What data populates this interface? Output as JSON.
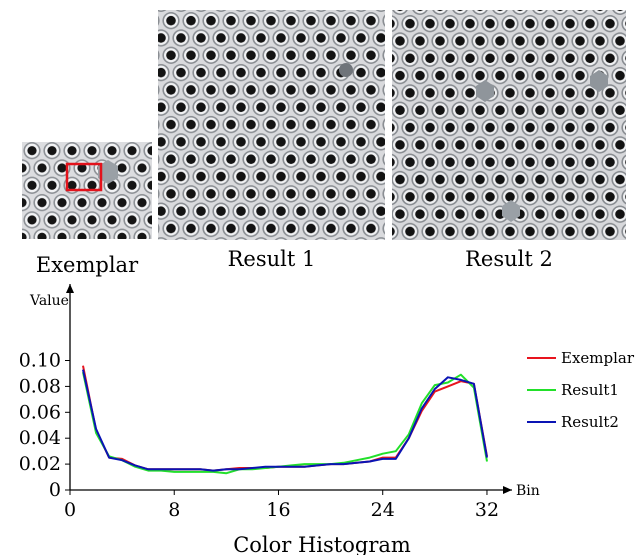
{
  "figure": {
    "captions": [
      "Exemplar",
      "Result 1",
      "Result 2"
    ]
  },
  "chart_data": {
    "type": "line",
    "xlabel": "Color Histogram",
    "x_axis_name": "Bin",
    "ylabel": "Value",
    "xlim": [
      0,
      33
    ],
    "ylim": [
      0,
      0.11
    ],
    "xticks": [
      0,
      8,
      16,
      24,
      32
    ],
    "yticks": [
      0,
      0.02,
      0.04,
      0.06,
      0.08,
      0.1
    ],
    "xtick_labels": [
      "0",
      "8",
      "16",
      "24",
      "32"
    ],
    "ytick_labels": [
      "0",
      "0.02",
      "0.04",
      "0.06",
      "0.08",
      "0.10"
    ],
    "legend_position": "right",
    "grid": false,
    "x": [
      1,
      2,
      3,
      4,
      5,
      6,
      7,
      8,
      9,
      10,
      11,
      12,
      13,
      14,
      15,
      16,
      17,
      18,
      19,
      20,
      21,
      22,
      23,
      24,
      25,
      26,
      27,
      28,
      29,
      30,
      31,
      32
    ],
    "series": [
      {
        "name": "Exemplar",
        "color": "#e8141e",
        "values": [
          0.096,
          0.046,
          0.025,
          0.024,
          0.019,
          0.016,
          0.016,
          0.016,
          0.016,
          0.016,
          0.015,
          0.016,
          0.017,
          0.017,
          0.017,
          0.018,
          0.018,
          0.018,
          0.019,
          0.02,
          0.02,
          0.021,
          0.022,
          0.025,
          0.025,
          0.04,
          0.061,
          0.076,
          0.08,
          0.084,
          0.082,
          0.026
        ]
      },
      {
        "name": "Result1",
        "color": "#22e02a",
        "values": [
          0.091,
          0.044,
          0.026,
          0.023,
          0.018,
          0.015,
          0.015,
          0.014,
          0.014,
          0.014,
          0.014,
          0.013,
          0.016,
          0.016,
          0.017,
          0.018,
          0.019,
          0.02,
          0.02,
          0.02,
          0.021,
          0.023,
          0.025,
          0.028,
          0.03,
          0.043,
          0.067,
          0.081,
          0.083,
          0.089,
          0.079,
          0.022
        ]
      },
      {
        "name": "Result2",
        "color": "#0a14b4",
        "values": [
          0.093,
          0.047,
          0.025,
          0.023,
          0.019,
          0.016,
          0.016,
          0.016,
          0.016,
          0.016,
          0.015,
          0.016,
          0.016,
          0.017,
          0.018,
          0.018,
          0.018,
          0.018,
          0.019,
          0.02,
          0.02,
          0.021,
          0.022,
          0.024,
          0.024,
          0.04,
          0.063,
          0.078,
          0.087,
          0.085,
          0.082,
          0.025
        ]
      }
    ]
  }
}
